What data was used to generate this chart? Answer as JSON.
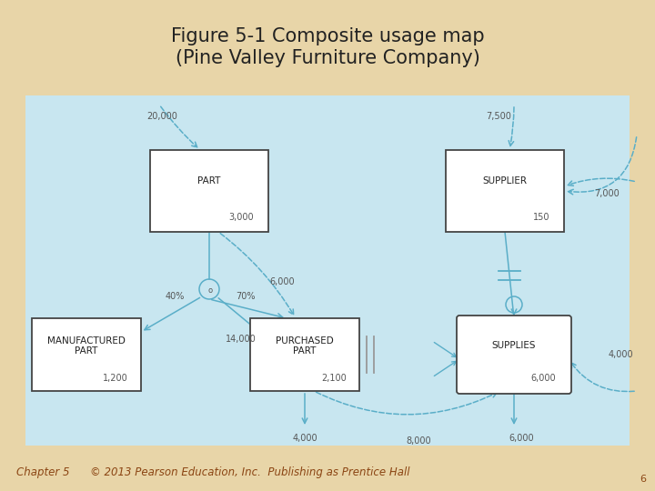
{
  "title": "Figure 5-1 Composite usage map\n(Pine Valley Furniture Company)",
  "title_fontsize": 15,
  "background_outer": "#E8D5A8",
  "background_inner": "#C8E6F0",
  "footer_text": "Chapter 5      © 2013 Pearson Education, Inc.  Publishing as Prentice Hall",
  "footer_page": "6",
  "arrow_color": "#5AAEC8",
  "box_edge_color": "#444444",
  "circle_color": "#5AAEC8",
  "label_color": "#555555",
  "num_color": "#555555"
}
